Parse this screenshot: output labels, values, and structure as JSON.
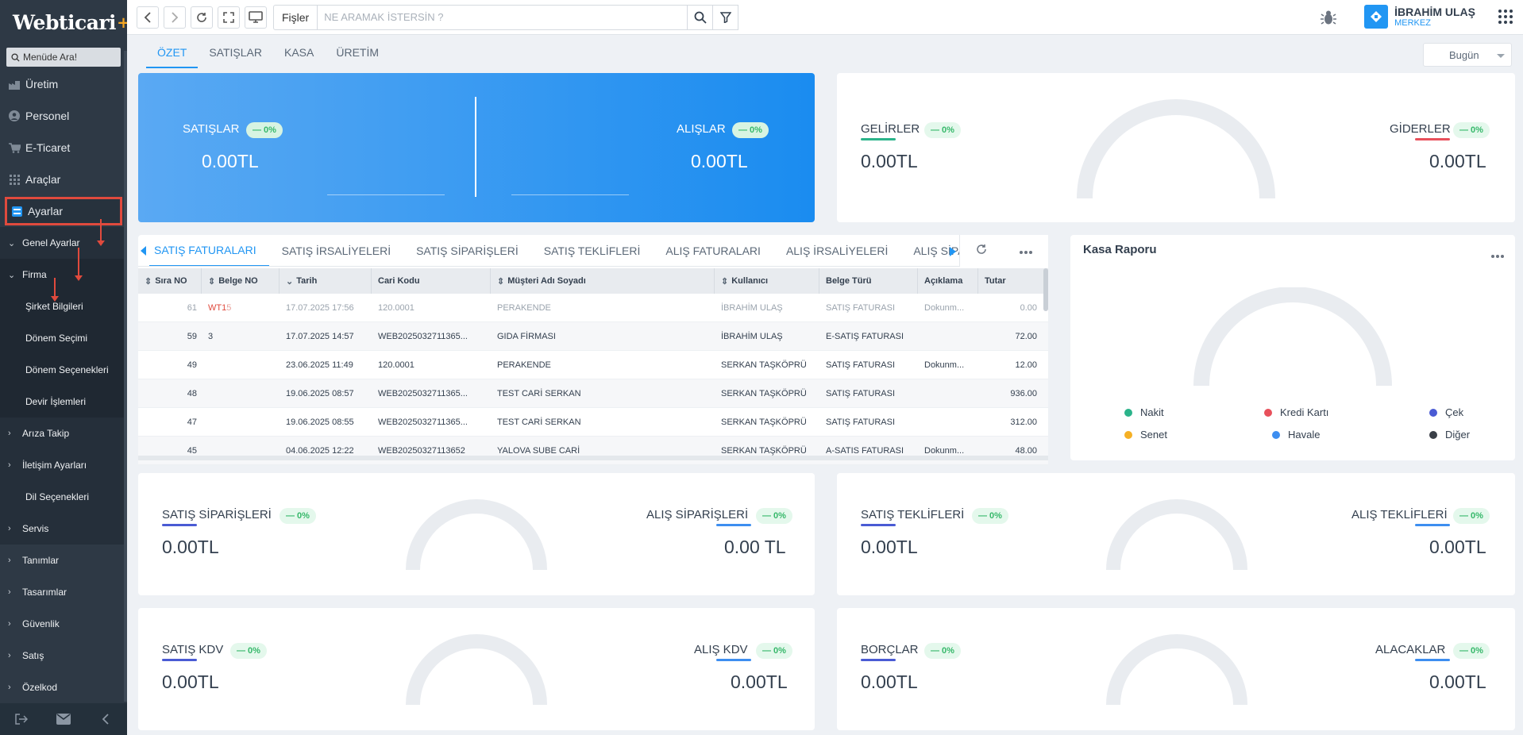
{
  "app": {
    "logo": "Webticari",
    "logo_plus": "+"
  },
  "sidebar": {
    "search_placeholder": "Menüde Ara!",
    "items": [
      {
        "label": "Üretim",
        "icon": "factory-icon"
      },
      {
        "label": "Personel",
        "icon": "person-icon"
      },
      {
        "label": "E-Ticaret",
        "icon": "cart-icon"
      },
      {
        "label": "Araçlar",
        "icon": "grid-icon"
      },
      {
        "label": "Ayarlar",
        "icon": "settings-icon"
      }
    ],
    "sub": {
      "genel": "Genel Ayarlar",
      "firma": "Firma",
      "leaf": [
        "Şirket Bilgileri",
        "Dönem Seçimi",
        "Dönem Seçenekleri",
        "Devir İşlemleri"
      ],
      "groups": [
        "Arıza Takip",
        "İletişim Ayarları"
      ],
      "dil": "Dil Seçenekleri",
      "servis": "Servis",
      "rest": [
        "Tanımlar",
        "Tasarımlar",
        "Güvenlik",
        "Satış",
        "Özelkod"
      ]
    }
  },
  "topbar": {
    "fisler": "Fişler",
    "search_placeholder": "NE ARAMAK İSTERSİN ?",
    "user_name": "İBRAHİM ULAŞ",
    "user_branch": "MERKEZ"
  },
  "tabs": [
    "ÖZET",
    "SATIŞLAR",
    "KASA",
    "ÜRETİM"
  ],
  "date_filter": "Bugün",
  "kpi": {
    "satislar": {
      "label": "SATIŞLAR",
      "badge": "— 0%",
      "value": "0.00TL"
    },
    "alislar": {
      "label": "ALIŞLAR",
      "badge": "— 0%",
      "value": "0.00TL"
    },
    "gelirler": {
      "label": "GELİRLER",
      "badge": "— 0%",
      "value": "0.00TL"
    },
    "giderler": {
      "label": "GİDERLER",
      "badge": "— 0%",
      "value": "0.00TL"
    },
    "satis_siparisleri": {
      "label": "SATIŞ SİPARİŞLERİ",
      "badge": "— 0%",
      "value": "0.00TL"
    },
    "alis_siparisleri": {
      "label": "ALIŞ SİPARİŞLERİ",
      "badge": "— 0%",
      "value": "0.00 TL"
    },
    "satis_teklifleri": {
      "label": "SATIŞ TEKLİFLERİ",
      "badge": "— 0%",
      "value": "0.00TL"
    },
    "alis_teklifleri": {
      "label": "ALIŞ TEKLİFLERİ",
      "badge": "— 0%",
      "value": "0.00TL"
    },
    "satis_kdv": {
      "label": "SATIŞ KDV",
      "badge": "— 0%",
      "value": "0.00TL"
    },
    "alis_kdv": {
      "label": "ALIŞ KDV",
      "badge": "— 0%",
      "value": "0.00TL"
    },
    "borclar": {
      "label": "BORÇLAR",
      "badge": "— 0%",
      "value": "0.00TL"
    },
    "alacaklar": {
      "label": "ALACAKLAR",
      "badge": "— 0%",
      "value": "0.00TL"
    }
  },
  "doc_tabs": [
    "SATIŞ FATURALARI",
    "SATIŞ İRSALİYELERİ",
    "SATIŞ SİPARİŞLERİ",
    "SATIŞ TEKLİFLERİ",
    "ALIŞ FATURALARI",
    "ALIŞ İRSALİYELERİ",
    "ALIŞ SİPARİŞLERİ"
  ],
  "table": {
    "headers": [
      "Sıra NO",
      "Belge NO",
      "Tarih",
      "Cari Kodu",
      "Müşteri Adı Soyadı",
      "Kullanıcı",
      "Belge Türü",
      "Açıklama",
      "Tutar"
    ],
    "rows": [
      {
        "sira": "61",
        "belge_a": "WT1",
        "belge_b": "5",
        "tarih": "17.07.2025 17:56",
        "cari": "120.0001",
        "musteri": "PERAKENDE",
        "kullanici": "İBRAHİM ULAŞ",
        "tur": "SATIŞ FATURASI",
        "aciklama": "Dokunm...",
        "tutar": "0.00"
      },
      {
        "sira": "59",
        "belge_a": "",
        "belge_b": "3",
        "tarih": "17.07.2025 14:57",
        "cari": "WEB2025032711365...",
        "musteri": "GIDA FİRMASI",
        "kullanici": "İBRAHİM ULAŞ",
        "tur": "E-SATIŞ FATURASI",
        "aciklama": "",
        "tutar": "72.00"
      },
      {
        "sira": "49",
        "belge_a": "",
        "belge_b": "",
        "tarih": "23.06.2025 11:49",
        "cari": "120.0001",
        "musteri": "PERAKENDE",
        "kullanici": "SERKAN TAŞKÖPRÜ",
        "tur": "SATIŞ FATURASI",
        "aciklama": "Dokunm...",
        "tutar": "12.00"
      },
      {
        "sira": "48",
        "belge_a": "",
        "belge_b": "",
        "tarih": "19.06.2025 08:57",
        "cari": "WEB2025032711365...",
        "musteri": "TEST CARİ SERKAN",
        "kullanici": "SERKAN TAŞKÖPRÜ",
        "tur": "SATIŞ FATURASI",
        "aciklama": "",
        "tutar": "936.00"
      },
      {
        "sira": "47",
        "belge_a": "",
        "belge_b": "",
        "tarih": "19.06.2025 08:55",
        "cari": "WEB2025032711365...",
        "musteri": "TEST CARİ SERKAN",
        "kullanici": "SERKAN TAŞKÖPRÜ",
        "tur": "SATIŞ FATURASI",
        "aciklama": "",
        "tutar": "312.00"
      },
      {
        "sira": "45",
        "belge_a": "",
        "belge_b": "",
        "tarih": "04.06.2025 12:22",
        "cari": "WEB20250327113652",
        "musteri": "YALOVA SUBE CARİ",
        "kullanici": "SERKAN TAŞKÖPRÜ",
        "tur": "A-SATIS FATURASI",
        "aciklama": "Dokunm...",
        "tutar": "48.00"
      }
    ]
  },
  "kasa": {
    "title": "Kasa Raporu",
    "legend": [
      {
        "label": "Nakit",
        "color": "#2bb38a"
      },
      {
        "label": "Kredi Kartı",
        "color": "#e8505b"
      },
      {
        "label": "Çek",
        "color": "#4a5bd4"
      },
      {
        "label": "Senet",
        "color": "#f5b025"
      },
      {
        "label": "Havale",
        "color": "#3d8ef0"
      },
      {
        "label": "Diğer",
        "color": "#3a3f47"
      }
    ]
  },
  "colors": {
    "accent": "#2196f3",
    "gauge": "#e9ecf0",
    "badge_text": "#36b86a",
    "danger": "#e04a3d"
  }
}
